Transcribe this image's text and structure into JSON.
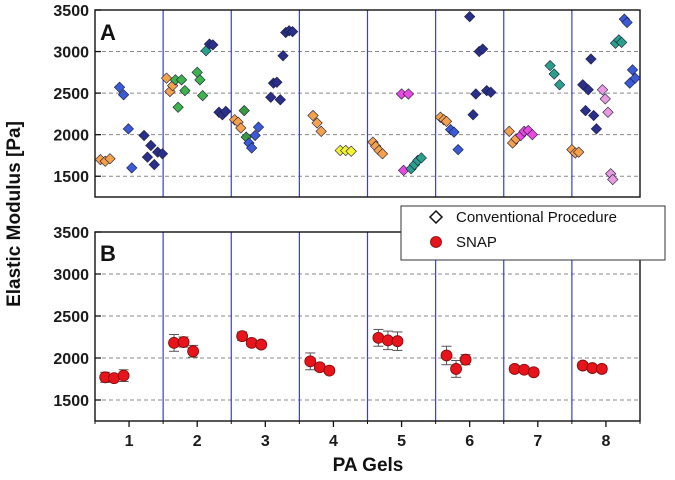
{
  "chart_data": {
    "type": "scatter",
    "xlabel": "PA Gels",
    "ylabel": "Elastic Modulus [Pa]",
    "x_ticks": [
      "1",
      "2",
      "3",
      "4",
      "5",
      "6",
      "7",
      "8"
    ],
    "legend": {
      "placement": "top-right of lower panel",
      "entries": [
        {
          "label": "Conventional Procedure",
          "marker": "open-diamond"
        },
        {
          "label": "SNAP",
          "marker": "red-circle"
        }
      ]
    },
    "panels": [
      {
        "label": "A",
        "ylim": [
          1250,
          3500
        ],
        "yticks": [
          1500,
          2000,
          2500,
          3000,
          3500
        ],
        "series_name": "Conventional Procedure",
        "points": [
          {
            "x": 0.58,
            "y": 1700,
            "color": "#f5a04a"
          },
          {
            "x": 0.65,
            "y": 1680,
            "color": "#f5a04a"
          },
          {
            "x": 0.72,
            "y": 1710,
            "color": "#f5a04a"
          },
          {
            "x": 0.86,
            "y": 2570,
            "color": "#3a5ad6"
          },
          {
            "x": 0.92,
            "y": 2480,
            "color": "#3a5ad6"
          },
          {
            "x": 0.99,
            "y": 2070,
            "color": "#3a5ad6"
          },
          {
            "x": 1.04,
            "y": 1600,
            "color": "#3a5ad6"
          },
          {
            "x": 1.22,
            "y": 1990,
            "color": "#2a2f8a"
          },
          {
            "x": 1.27,
            "y": 1730,
            "color": "#2a2f8a"
          },
          {
            "x": 1.32,
            "y": 1870,
            "color": "#2a2f8a"
          },
          {
            "x": 1.37,
            "y": 1640,
            "color": "#2a2f8a"
          },
          {
            "x": 1.42,
            "y": 1790,
            "color": "#2a2f8a"
          },
          {
            "x": 1.49,
            "y": 1770,
            "color": "#2a2f8a"
          },
          {
            "x": 1.55,
            "y": 2680,
            "color": "#f5a04a"
          },
          {
            "x": 1.6,
            "y": 2520,
            "color": "#f5a04a"
          },
          {
            "x": 1.64,
            "y": 2590,
            "color": "#f5a04a"
          },
          {
            "x": 1.68,
            "y": 2660,
            "color": "#3cb44b"
          },
          {
            "x": 1.72,
            "y": 2330,
            "color": "#3cb44b"
          },
          {
            "x": 1.77,
            "y": 2660,
            "color": "#3cb44b"
          },
          {
            "x": 1.82,
            "y": 2530,
            "color": "#3cb44b"
          },
          {
            "x": 2.0,
            "y": 2750,
            "color": "#3cb44b"
          },
          {
            "x": 2.04,
            "y": 2660,
            "color": "#3cb44b"
          },
          {
            "x": 2.08,
            "y": 2470,
            "color": "#3cb44b"
          },
          {
            "x": 2.13,
            "y": 3010,
            "color": "#2aa08a"
          },
          {
            "x": 2.18,
            "y": 3090,
            "color": "#2a2f8a"
          },
          {
            "x": 2.23,
            "y": 3080,
            "color": "#2a2f8a"
          },
          {
            "x": 2.32,
            "y": 2270,
            "color": "#2a2f8a"
          },
          {
            "x": 2.37,
            "y": 2240,
            "color": "#2a2f8a"
          },
          {
            "x": 2.42,
            "y": 2280,
            "color": "#2a2f8a"
          },
          {
            "x": 2.55,
            "y": 2180,
            "color": "#f5a04a"
          },
          {
            "x": 2.6,
            "y": 2150,
            "color": "#f5a04a"
          },
          {
            "x": 2.64,
            "y": 2080,
            "color": "#f5a04a"
          },
          {
            "x": 2.69,
            "y": 2290,
            "color": "#3a9a40"
          },
          {
            "x": 2.72,
            "y": 1970,
            "color": "#3a9a40"
          },
          {
            "x": 2.76,
            "y": 1900,
            "color": "#3a5ad6"
          },
          {
            "x": 2.8,
            "y": 1840,
            "color": "#3a5ad6"
          },
          {
            "x": 2.85,
            "y": 1990,
            "color": "#3a5ad6"
          },
          {
            "x": 2.9,
            "y": 2090,
            "color": "#3a5ad6"
          },
          {
            "x": 3.08,
            "y": 2450,
            "color": "#2a2f8a"
          },
          {
            "x": 3.12,
            "y": 2620,
            "color": "#2a2f8a"
          },
          {
            "x": 3.17,
            "y": 2630,
            "color": "#2a2f8a"
          },
          {
            "x": 3.22,
            "y": 2420,
            "color": "#2a2f8a"
          },
          {
            "x": 3.26,
            "y": 2950,
            "color": "#2a2f8a"
          },
          {
            "x": 3.3,
            "y": 3230,
            "color": "#2a2f8a"
          },
          {
            "x": 3.35,
            "y": 3250,
            "color": "#2a2f8a"
          },
          {
            "x": 3.4,
            "y": 3240,
            "color": "#2a2f8a"
          },
          {
            "x": 3.7,
            "y": 2230,
            "color": "#f5a04a"
          },
          {
            "x": 3.76,
            "y": 2140,
            "color": "#f5a04a"
          },
          {
            "x": 3.82,
            "y": 2040,
            "color": "#f5a04a"
          },
          {
            "x": 4.1,
            "y": 1810,
            "color": "#f2f230"
          },
          {
            "x": 4.18,
            "y": 1810,
            "color": "#f2f230"
          },
          {
            "x": 4.26,
            "y": 1800,
            "color": "#f2f230"
          },
          {
            "x": 4.58,
            "y": 1910,
            "color": "#f5a04a"
          },
          {
            "x": 4.62,
            "y": 1860,
            "color": "#f5a04a"
          },
          {
            "x": 4.67,
            "y": 1810,
            "color": "#f5a04a"
          },
          {
            "x": 4.72,
            "y": 1770,
            "color": "#f5a04a"
          },
          {
            "x": 5.0,
            "y": 2490,
            "color": "#e84adf"
          },
          {
            "x": 5.1,
            "y": 2490,
            "color": "#e84adf"
          },
          {
            "x": 5.03,
            "y": 1570,
            "color": "#e84adf"
          },
          {
            "x": 5.14,
            "y": 1590,
            "color": "#2aa08a"
          },
          {
            "x": 5.19,
            "y": 1640,
            "color": "#2aa08a"
          },
          {
            "x": 5.24,
            "y": 1690,
            "color": "#2aa08a"
          },
          {
            "x": 5.29,
            "y": 1720,
            "color": "#2aa08a"
          },
          {
            "x": 5.57,
            "y": 2210,
            "color": "#f5a04a"
          },
          {
            "x": 5.62,
            "y": 2180,
            "color": "#f5a04a"
          },
          {
            "x": 5.66,
            "y": 2160,
            "color": "#f5a04a"
          },
          {
            "x": 5.72,
            "y": 2060,
            "color": "#3a5ad6"
          },
          {
            "x": 5.77,
            "y": 2030,
            "color": "#3a5ad6"
          },
          {
            "x": 5.83,
            "y": 1820,
            "color": "#3a5ad6"
          },
          {
            "x": 6.0,
            "y": 3420,
            "color": "#2a2f8a"
          },
          {
            "x": 6.05,
            "y": 2240,
            "color": "#2a2f8a"
          },
          {
            "x": 6.09,
            "y": 2490,
            "color": "#2a2f8a"
          },
          {
            "x": 6.14,
            "y": 3000,
            "color": "#2a2f8a"
          },
          {
            "x": 6.19,
            "y": 3030,
            "color": "#2a2f8a"
          },
          {
            "x": 6.25,
            "y": 2530,
            "color": "#2a2f8a"
          },
          {
            "x": 6.31,
            "y": 2510,
            "color": "#2a2f8a"
          },
          {
            "x": 6.58,
            "y": 2040,
            "color": "#f5a04a"
          },
          {
            "x": 6.63,
            "y": 1900,
            "color": "#f5a04a"
          },
          {
            "x": 6.68,
            "y": 1950,
            "color": "#f5a04a"
          },
          {
            "x": 6.75,
            "y": 1990,
            "color": "#e84adf"
          },
          {
            "x": 6.8,
            "y": 2040,
            "color": "#e84adf"
          },
          {
            "x": 6.86,
            "y": 2050,
            "color": "#e84adf"
          },
          {
            "x": 6.92,
            "y": 2000,
            "color": "#e84adf"
          },
          {
            "x": 7.18,
            "y": 2830,
            "color": "#2aa08a"
          },
          {
            "x": 7.24,
            "y": 2730,
            "color": "#2aa08a"
          },
          {
            "x": 7.32,
            "y": 2600,
            "color": "#2aa08a"
          },
          {
            "x": 7.5,
            "y": 1820,
            "color": "#f5a04a"
          },
          {
            "x": 7.55,
            "y": 1780,
            "color": "#f5a04a"
          },
          {
            "x": 7.6,
            "y": 1790,
            "color": "#f5a04a"
          },
          {
            "x": 7.66,
            "y": 2600,
            "color": "#2a2f8a"
          },
          {
            "x": 7.7,
            "y": 2290,
            "color": "#2a2f8a"
          },
          {
            "x": 7.74,
            "y": 2540,
            "color": "#2a2f8a"
          },
          {
            "x": 7.78,
            "y": 2910,
            "color": "#2a2f8a"
          },
          {
            "x": 7.82,
            "y": 2230,
            "color": "#2a2f8a"
          },
          {
            "x": 7.86,
            "y": 2070,
            "color": "#2a2f8a"
          },
          {
            "x": 7.95,
            "y": 2540,
            "color": "#e89ae0"
          },
          {
            "x": 7.99,
            "y": 2430,
            "color": "#e89ae0"
          },
          {
            "x": 8.03,
            "y": 2270,
            "color": "#e89ae0"
          },
          {
            "x": 8.07,
            "y": 1530,
            "color": "#e89ae0"
          },
          {
            "x": 8.1,
            "y": 1460,
            "color": "#e89ae0"
          },
          {
            "x": 8.14,
            "y": 3100,
            "color": "#2aa08a"
          },
          {
            "x": 8.19,
            "y": 3140,
            "color": "#2aa08a"
          },
          {
            "x": 8.23,
            "y": 3110,
            "color": "#2aa08a"
          },
          {
            "x": 8.27,
            "y": 3390,
            "color": "#3a5ad6"
          },
          {
            "x": 8.31,
            "y": 3350,
            "color": "#3a5ad6"
          },
          {
            "x": 8.35,
            "y": 2620,
            "color": "#3a5ad6"
          },
          {
            "x": 8.39,
            "y": 2780,
            "color": "#3a5ad6"
          },
          {
            "x": 8.43,
            "y": 2680,
            "color": "#3a5ad6"
          }
        ]
      },
      {
        "label": "B",
        "ylim": [
          1250,
          3500
        ],
        "yticks": [
          1500,
          2000,
          2500,
          3000,
          3500
        ],
        "series_name": "SNAP",
        "color": "#e8141c",
        "points": [
          {
            "x": 0.65,
            "y": 1770,
            "err": 60
          },
          {
            "x": 0.78,
            "y": 1760,
            "err": 40
          },
          {
            "x": 0.92,
            "y": 1790,
            "err": 70
          },
          {
            "x": 1.66,
            "y": 2180,
            "err": 100
          },
          {
            "x": 1.8,
            "y": 2190,
            "err": 60
          },
          {
            "x": 1.94,
            "y": 2080,
            "err": 70
          },
          {
            "x": 2.66,
            "y": 2260,
            "err": 50
          },
          {
            "x": 2.8,
            "y": 2180,
            "err": 40
          },
          {
            "x": 2.94,
            "y": 2160,
            "err": 40
          },
          {
            "x": 3.66,
            "y": 1960,
            "err": 100
          },
          {
            "x": 3.8,
            "y": 1890,
            "err": 40
          },
          {
            "x": 3.94,
            "y": 1850,
            "err": 30
          },
          {
            "x": 4.66,
            "y": 2240,
            "err": 100
          },
          {
            "x": 4.8,
            "y": 2210,
            "err": 110
          },
          {
            "x": 4.94,
            "y": 2200,
            "err": 110
          },
          {
            "x": 5.66,
            "y": 2030,
            "err": 110
          },
          {
            "x": 5.8,
            "y": 1870,
            "err": 100
          },
          {
            "x": 5.94,
            "y": 1980,
            "err": 60
          },
          {
            "x": 6.66,
            "y": 1870,
            "err": 40
          },
          {
            "x": 6.8,
            "y": 1860,
            "err": 30
          },
          {
            "x": 6.94,
            "y": 1830,
            "err": 40
          },
          {
            "x": 7.66,
            "y": 1910,
            "err": 40
          },
          {
            "x": 7.8,
            "y": 1880,
            "err": 30
          },
          {
            "x": 7.94,
            "y": 1870,
            "err": 40
          }
        ]
      }
    ],
    "group_dividers": [
      1.5,
      2.5,
      3.5,
      4.5,
      5.5,
      6.5,
      7.5
    ]
  }
}
